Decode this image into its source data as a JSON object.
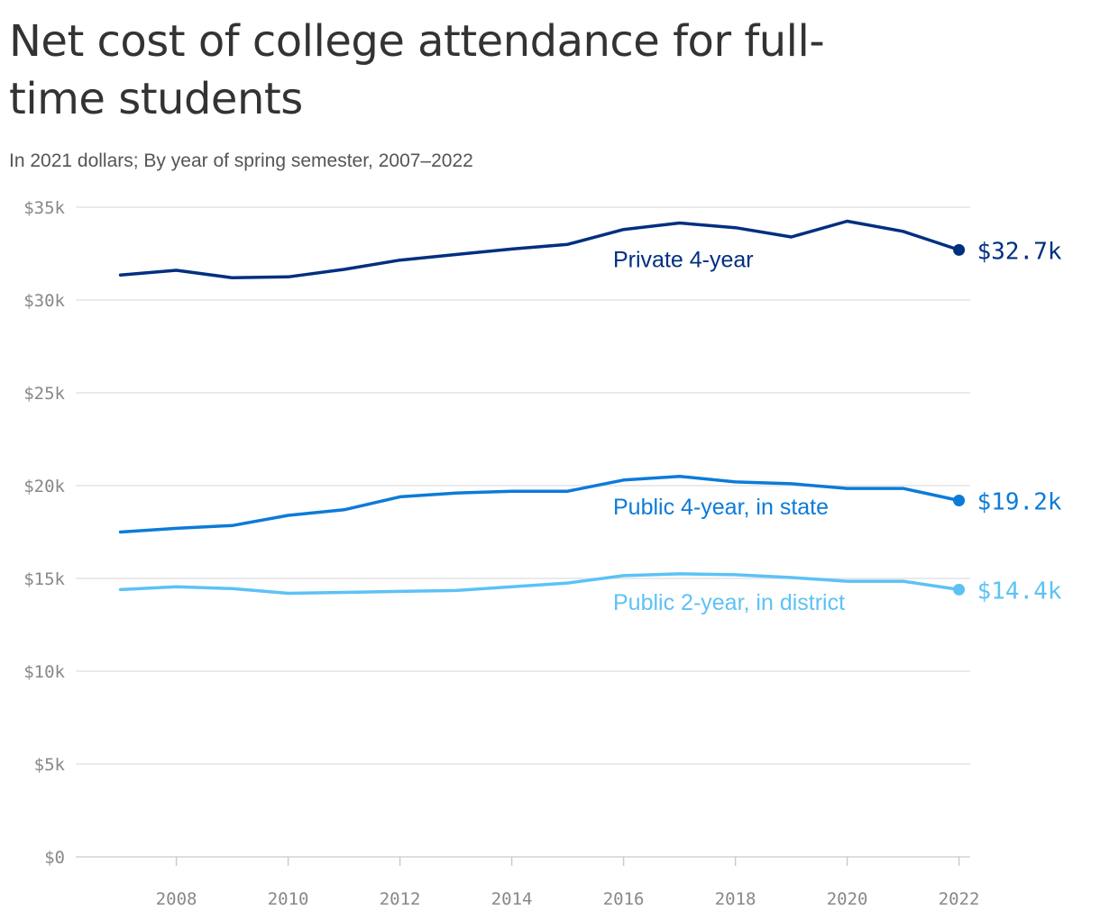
{
  "title": "Net cost of college attendance for full-time students",
  "subtitle": "In 2021 dollars; By year of spring semester, 2007–2022",
  "chart_data": {
    "type": "line",
    "title": "Net cost of college attendance for full-time students",
    "subtitle": "In 2021 dollars; By year of spring semester, 2007–2022",
    "xlabel": "",
    "ylabel": "",
    "x": [
      2007,
      2008,
      2009,
      2010,
      2011,
      2012,
      2013,
      2014,
      2015,
      2016,
      2017,
      2018,
      2019,
      2020,
      2021,
      2022
    ],
    "xlim": [
      2006.2,
      2022.2
    ],
    "ylim": [
      0,
      35000
    ],
    "x_ticks": [
      2008,
      2010,
      2012,
      2014,
      2016,
      2018,
      2020,
      2022
    ],
    "x_tick_labels": [
      "2008",
      "2010",
      "2012",
      "2014",
      "2016",
      "2018",
      "2020",
      "2022"
    ],
    "y_ticks": [
      0,
      5000,
      10000,
      15000,
      20000,
      25000,
      30000,
      35000
    ],
    "y_tick_labels": [
      "$0",
      "$5k",
      "$10k",
      "$15k",
      "$20k",
      "$25k",
      "$30k",
      "$35k"
    ],
    "grid": true,
    "legend": "direct labels on lines",
    "series": [
      {
        "name": "Private 4-year",
        "color": "#002f80",
        "end_label": "$32.7k",
        "values": [
          31350,
          31600,
          31200,
          31250,
          31650,
          32150,
          32450,
          32750,
          33000,
          33800,
          34150,
          33900,
          33400,
          34250,
          33700,
          32700
        ]
      },
      {
        "name": "Public 4-year, in state",
        "color": "#0c7bd8",
        "end_label": "$19.2k",
        "values": [
          17500,
          17700,
          17850,
          18400,
          18700,
          19400,
          19600,
          19700,
          19700,
          20300,
          20500,
          20200,
          20100,
          19850,
          19850,
          19200
        ]
      },
      {
        "name": "Public 2-year, in district",
        "color": "#5cc2f5",
        "end_label": "$14.4k",
        "values": [
          14400,
          14550,
          14450,
          14200,
          14250,
          14300,
          14350,
          14550,
          14750,
          15150,
          15250,
          15200,
          15050,
          14850,
          14850,
          14400
        ]
      }
    ]
  }
}
